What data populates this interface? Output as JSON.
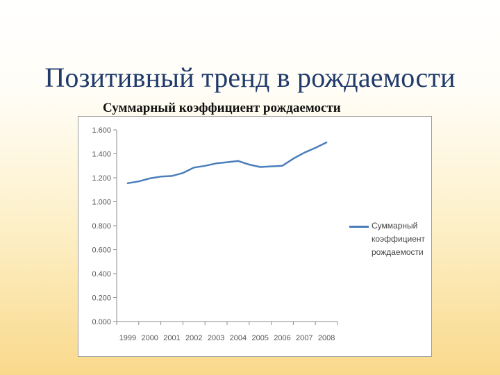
{
  "slide": {
    "title": "Позитивный тренд в рождаемости"
  },
  "chart_data": {
    "type": "line",
    "title": "Суммарный коэффициент  рождаемости",
    "xlabel": "",
    "ylabel": "",
    "categories": [
      "1999",
      "2000",
      "2001",
      "2002",
      "2003",
      "2004",
      "2005",
      "2006",
      "2007",
      "2008"
    ],
    "x": [
      1999,
      1999.5,
      2000,
      2000.5,
      2001,
      2001.5,
      2002,
      2002.5,
      2003,
      2003.5,
      2004,
      2004.5,
      2005,
      2005.5,
      2006,
      2006.5,
      2007,
      2007.5,
      2008
    ],
    "series": [
      {
        "name": "Суммарный коэффициент рождаемости",
        "color": "#4a7ebb",
        "values": [
          1.155,
          1.17,
          1.195,
          1.21,
          1.215,
          1.24,
          1.285,
          1.3,
          1.32,
          1.33,
          1.34,
          1.31,
          1.29,
          1.295,
          1.3,
          1.36,
          1.41,
          1.45,
          1.495
        ]
      }
    ],
    "ylim": [
      0,
      1.6
    ],
    "y_ticks": [
      "0.000",
      "0.200",
      "0.400",
      "0.600",
      "0.800",
      "1.000",
      "1.200",
      "1.400",
      "1.600"
    ],
    "grid": false,
    "legend_position": "right"
  }
}
